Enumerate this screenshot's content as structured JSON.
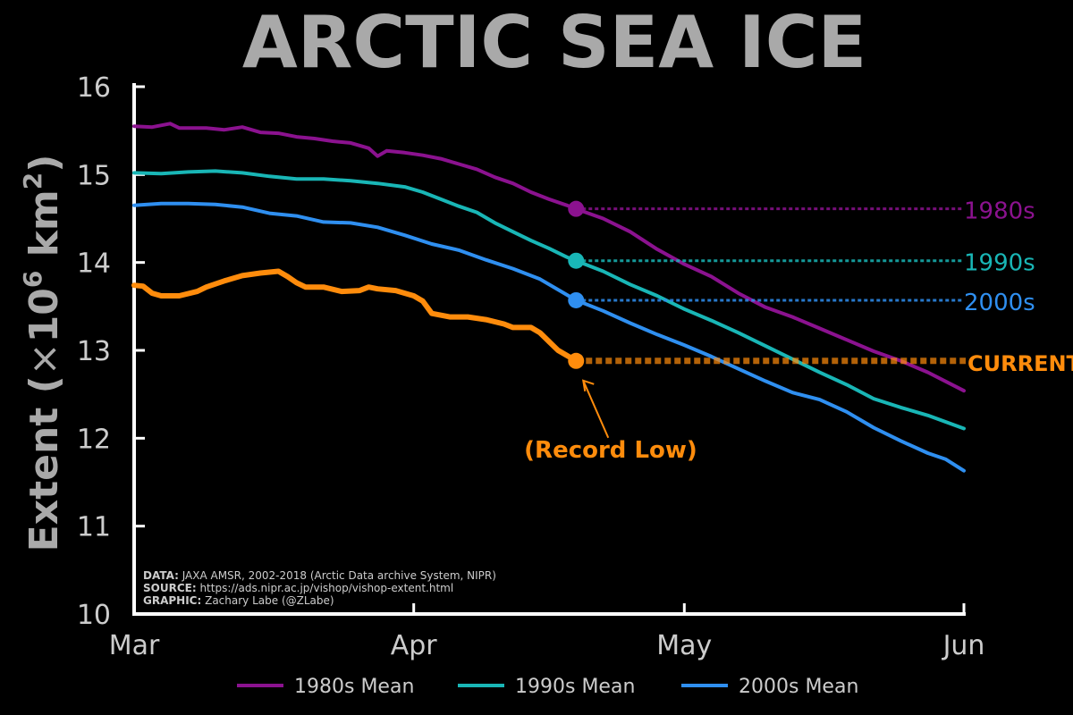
{
  "colors": {
    "background": "#000000",
    "axis": "#ffffff",
    "tick_text": "#cccccc",
    "title": "#a9a9a9",
    "ylabel": "#a9a9a9",
    "credits": "#cccccc",
    "1980s": "#8b128f",
    "1990s": "#19b6b6",
    "2000s": "#2f8ff0",
    "current": "#ff8c0c"
  },
  "chart_data": {
    "type": "line",
    "title": "ARCTIC SEA ICE",
    "ylabel": "Extent (×10⁶ km²)",
    "ylabel_parts": {
      "pre": "Extent (",
      "times": "×",
      "base": "10",
      "exp1": "6",
      "unit": " km",
      "exp2": "2",
      "post": ")"
    },
    "ylim": [
      10,
      16
    ],
    "yticks": [
      "10",
      "11",
      "12",
      "13",
      "14",
      "15",
      "16"
    ],
    "xlim": [
      "Mar 1",
      "Jun 1"
    ],
    "xticks": [
      {
        "day": 0,
        "label": "Mar"
      },
      {
        "day": 31,
        "label": "Apr"
      },
      {
        "day": 61,
        "label": "May"
      },
      {
        "day": 92,
        "label": "Jun"
      }
    ],
    "grid": false,
    "current_day": 49,
    "series": [
      {
        "key": "1980s",
        "name": "1980s Mean",
        "end_label": "1980s",
        "marker_value": 14.61,
        "points": [
          [
            0,
            15.55
          ],
          [
            2,
            15.54
          ],
          [
            4,
            15.58
          ],
          [
            5,
            15.53
          ],
          [
            8,
            15.53
          ],
          [
            10,
            15.51
          ],
          [
            12,
            15.54
          ],
          [
            14,
            15.48
          ],
          [
            16,
            15.47
          ],
          [
            18,
            15.43
          ],
          [
            20,
            15.41
          ],
          [
            22,
            15.38
          ],
          [
            24,
            15.36
          ],
          [
            26,
            15.3
          ],
          [
            27,
            15.21
          ],
          [
            28,
            15.27
          ],
          [
            30,
            15.25
          ],
          [
            32,
            15.22
          ],
          [
            34,
            15.18
          ],
          [
            36,
            15.12
          ],
          [
            38,
            15.06
          ],
          [
            40,
            14.97
          ],
          [
            42,
            14.9
          ],
          [
            44,
            14.8
          ],
          [
            46,
            14.72
          ],
          [
            48,
            14.65
          ],
          [
            49,
            14.61
          ],
          [
            52,
            14.5
          ],
          [
            55,
            14.35
          ],
          [
            58,
            14.15
          ],
          [
            61,
            13.98
          ],
          [
            64,
            13.84
          ],
          [
            67,
            13.65
          ],
          [
            70,
            13.49
          ],
          [
            73,
            13.38
          ],
          [
            76,
            13.25
          ],
          [
            79,
            13.12
          ],
          [
            82,
            12.99
          ],
          [
            85,
            12.88
          ],
          [
            88,
            12.75
          ],
          [
            92,
            12.54
          ]
        ]
      },
      {
        "key": "1990s",
        "name": "1990s Mean",
        "end_label": "1990s",
        "marker_value": 14.02,
        "points": [
          [
            0,
            15.02
          ],
          [
            3,
            15.01
          ],
          [
            6,
            15.03
          ],
          [
            9,
            15.04
          ],
          [
            12,
            15.02
          ],
          [
            15,
            14.98
          ],
          [
            18,
            14.95
          ],
          [
            21,
            14.95
          ],
          [
            24,
            14.93
          ],
          [
            27,
            14.9
          ],
          [
            30,
            14.86
          ],
          [
            32,
            14.8
          ],
          [
            34,
            14.72
          ],
          [
            36,
            14.64
          ],
          [
            38,
            14.57
          ],
          [
            40,
            14.45
          ],
          [
            42,
            14.35
          ],
          [
            44,
            14.25
          ],
          [
            46,
            14.16
          ],
          [
            48,
            14.06
          ],
          [
            49,
            14.02
          ],
          [
            52,
            13.9
          ],
          [
            55,
            13.75
          ],
          [
            58,
            13.62
          ],
          [
            61,
            13.47
          ],
          [
            64,
            13.34
          ],
          [
            67,
            13.2
          ],
          [
            70,
            13.05
          ],
          [
            73,
            12.9
          ],
          [
            76,
            12.75
          ],
          [
            79,
            12.61
          ],
          [
            82,
            12.45
          ],
          [
            85,
            12.35
          ],
          [
            88,
            12.26
          ],
          [
            92,
            12.11
          ]
        ]
      },
      {
        "key": "2000s",
        "name": "2000s Mean",
        "end_label": "2000s",
        "marker_value": 13.57,
        "points": [
          [
            0,
            14.65
          ],
          [
            3,
            14.67
          ],
          [
            6,
            14.67
          ],
          [
            9,
            14.66
          ],
          [
            12,
            14.63
          ],
          [
            15,
            14.56
          ],
          [
            18,
            14.53
          ],
          [
            21,
            14.46
          ],
          [
            24,
            14.45
          ],
          [
            27,
            14.4
          ],
          [
            30,
            14.31
          ],
          [
            33,
            14.21
          ],
          [
            36,
            14.14
          ],
          [
            39,
            14.03
          ],
          [
            42,
            13.93
          ],
          [
            45,
            13.81
          ],
          [
            48,
            13.63
          ],
          [
            49,
            13.57
          ],
          [
            52,
            13.45
          ],
          [
            55,
            13.31
          ],
          [
            58,
            13.18
          ],
          [
            61,
            13.06
          ],
          [
            64,
            12.93
          ],
          [
            67,
            12.79
          ],
          [
            70,
            12.65
          ],
          [
            73,
            12.52
          ],
          [
            76,
            12.44
          ],
          [
            79,
            12.3
          ],
          [
            82,
            12.12
          ],
          [
            85,
            11.97
          ],
          [
            88,
            11.83
          ],
          [
            90,
            11.76
          ],
          [
            92,
            11.63
          ]
        ]
      },
      {
        "key": "current",
        "name": "",
        "end_label": "CURRENT",
        "marker_value": 12.88,
        "points": [
          [
            0,
            13.74
          ],
          [
            1,
            13.73
          ],
          [
            2,
            13.65
          ],
          [
            3,
            13.62
          ],
          [
            5,
            13.62
          ],
          [
            7,
            13.67
          ],
          [
            8,
            13.72
          ],
          [
            10,
            13.79
          ],
          [
            12,
            13.85
          ],
          [
            14,
            13.88
          ],
          [
            16,
            13.9
          ],
          [
            17,
            13.84
          ],
          [
            18,
            13.77
          ],
          [
            19,
            13.72
          ],
          [
            21,
            13.72
          ],
          [
            23,
            13.67
          ],
          [
            25,
            13.68
          ],
          [
            26,
            13.72
          ],
          [
            27,
            13.7
          ],
          [
            29,
            13.68
          ],
          [
            31,
            13.62
          ],
          [
            32,
            13.56
          ],
          [
            33,
            13.42
          ],
          [
            35,
            13.38
          ],
          [
            37,
            13.38
          ],
          [
            39,
            13.35
          ],
          [
            41,
            13.3
          ],
          [
            42,
            13.26
          ],
          [
            44,
            13.26
          ],
          [
            45,
            13.2
          ],
          [
            46,
            13.1
          ],
          [
            47,
            13.0
          ],
          [
            48,
            12.94
          ],
          [
            49,
            12.88
          ]
        ]
      }
    ],
    "annotation": {
      "text": "(Record Low)"
    },
    "credits": [
      {
        "label": "DATA:",
        "text": " JAXA AMSR, 2002-2018 (Arctic Data archive System, NIPR)"
      },
      {
        "label": "SOURCE:",
        "text": " https://ads.nipr.ac.jp/vishop/vishop-extent.html"
      },
      {
        "label": "GRAPHIC:",
        "text": " Zachary Labe (@ZLabe)"
      }
    ],
    "legend_placement": "bottom"
  }
}
